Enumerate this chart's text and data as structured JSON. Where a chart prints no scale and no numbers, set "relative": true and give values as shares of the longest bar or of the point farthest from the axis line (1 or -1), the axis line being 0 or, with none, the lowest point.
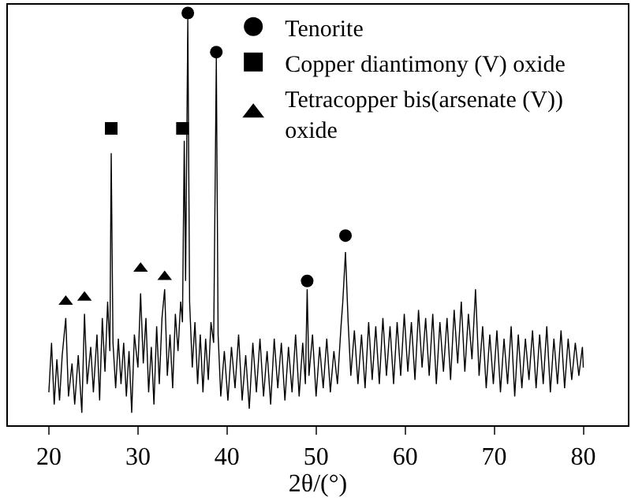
{
  "chart_data": {
    "type": "line",
    "relative": true,
    "xlabel": "2θ/(°)",
    "xlim": [
      15.4,
      85
    ],
    "xticks": [
      20,
      30,
      40,
      50,
      60,
      70,
      80
    ],
    "grid": false,
    "legend": "top right",
    "line_style": "solid",
    "series": [
      {
        "color": "#000000",
        "marker": "none",
        "x": [
          20.0,
          20.3,
          20.6,
          20.9,
          21.2,
          21.5,
          21.9,
          22.2,
          22.6,
          22.9,
          23.3,
          23.7,
          24.0,
          24.3,
          24.7,
          25.0,
          25.4,
          25.7,
          26.0,
          26.3,
          26.6,
          26.85,
          27.0,
          27.2,
          27.5,
          27.8,
          28.1,
          28.4,
          28.7,
          29.0,
          29.3,
          29.6,
          30.0,
          30.3,
          30.6,
          30.9,
          31.2,
          31.5,
          31.8,
          32.1,
          32.4,
          32.7,
          33.0,
          33.3,
          33.6,
          33.9,
          34.2,
          34.5,
          34.8,
          35.0,
          35.2,
          35.35,
          35.6,
          35.8,
          36.1,
          36.4,
          36.7,
          37.0,
          37.3,
          37.6,
          37.9,
          38.2,
          38.5,
          38.8,
          39.0,
          39.3,
          39.7,
          40.1,
          40.5,
          40.9,
          41.3,
          41.7,
          42.1,
          42.5,
          42.9,
          43.3,
          43.7,
          44.1,
          44.5,
          44.9,
          45.3,
          45.7,
          46.1,
          46.5,
          46.9,
          47.3,
          47.7,
          48.1,
          48.5,
          48.8,
          49.0,
          49.2,
          49.6,
          50.0,
          50.4,
          50.8,
          51.2,
          51.6,
          52.0,
          52.4,
          52.8,
          53.0,
          53.3,
          53.6,
          53.9,
          54.3,
          54.7,
          55.1,
          55.5,
          55.9,
          56.3,
          56.7,
          57.1,
          57.5,
          57.9,
          58.3,
          58.7,
          59.1,
          59.5,
          59.9,
          60.3,
          60.7,
          61.1,
          61.5,
          61.9,
          62.3,
          62.7,
          63.1,
          63.5,
          63.9,
          64.3,
          64.7,
          65.1,
          65.5,
          65.9,
          66.3,
          66.7,
          67.1,
          67.5,
          67.9,
          68.3,
          68.7,
          69.1,
          69.5,
          69.9,
          70.3,
          70.7,
          71.1,
          71.5,
          71.9,
          72.3,
          72.7,
          73.1,
          73.5,
          73.9,
          74.3,
          74.7,
          75.1,
          75.5,
          75.9,
          76.3,
          76.7,
          77.1,
          77.5,
          77.9,
          78.3,
          78.7,
          79.1,
          79.5,
          79.9,
          80.0
        ],
        "values": [
          0.08,
          0.2,
          0.05,
          0.16,
          0.06,
          0.17,
          0.26,
          0.07,
          0.15,
          0.05,
          0.17,
          0.03,
          0.27,
          0.1,
          0.19,
          0.08,
          0.22,
          0.06,
          0.26,
          0.13,
          0.3,
          0.18,
          0.66,
          0.2,
          0.09,
          0.21,
          0.1,
          0.2,
          0.07,
          0.18,
          0.03,
          0.22,
          0.14,
          0.32,
          0.15,
          0.26,
          0.08,
          0.19,
          0.05,
          0.24,
          0.1,
          0.26,
          0.33,
          0.12,
          0.22,
          0.09,
          0.27,
          0.18,
          0.3,
          0.25,
          0.69,
          0.35,
          0.985,
          0.3,
          0.14,
          0.25,
          0.1,
          0.22,
          0.08,
          0.21,
          0.11,
          0.25,
          0.2,
          0.89,
          0.22,
          0.07,
          0.18,
          0.06,
          0.19,
          0.09,
          0.22,
          0.06,
          0.17,
          0.04,
          0.2,
          0.08,
          0.21,
          0.07,
          0.18,
          0.05,
          0.21,
          0.09,
          0.2,
          0.06,
          0.19,
          0.08,
          0.22,
          0.07,
          0.2,
          0.1,
          0.33,
          0.12,
          0.22,
          0.07,
          0.19,
          0.09,
          0.21,
          0.08,
          0.18,
          0.1,
          0.24,
          0.3,
          0.42,
          0.25,
          0.12,
          0.23,
          0.1,
          0.22,
          0.09,
          0.25,
          0.11,
          0.24,
          0.1,
          0.26,
          0.12,
          0.24,
          0.1,
          0.25,
          0.12,
          0.27,
          0.13,
          0.25,
          0.11,
          0.28,
          0.14,
          0.26,
          0.12,
          0.27,
          0.1,
          0.25,
          0.13,
          0.26,
          0.11,
          0.28,
          0.15,
          0.3,
          0.13,
          0.27,
          0.16,
          0.33,
          0.12,
          0.24,
          0.09,
          0.22,
          0.1,
          0.23,
          0.08,
          0.21,
          0.1,
          0.24,
          0.07,
          0.22,
          0.09,
          0.21,
          0.11,
          0.23,
          0.09,
          0.22,
          0.1,
          0.24,
          0.08,
          0.21,
          0.1,
          0.23,
          0.09,
          0.21,
          0.11,
          0.2,
          0.12,
          0.19,
          0.14
        ]
      },
      {
        "type": "scatter",
        "name": "Tenorite",
        "color": "#000000",
        "marker": "circle",
        "x": [
          35.6,
          38.8,
          49.0,
          53.3
        ],
        "values": [
          1.0,
          0.905,
          0.35,
          0.46
        ]
      },
      {
        "type": "scatter",
        "name": "Copper diantimony (V) oxide",
        "color": "#000000",
        "marker": "square",
        "x": [
          27.0,
          35.0
        ],
        "values": [
          0.72,
          0.72
        ]
      },
      {
        "type": "scatter",
        "name": "Tetracopper bis(arsenate (V)) oxide",
        "color": "#000000",
        "marker": "triangle",
        "x": [
          21.9,
          24.0,
          30.3,
          33.0
        ],
        "values": [
          0.3,
          0.31,
          0.38,
          0.36
        ]
      }
    ]
  }
}
